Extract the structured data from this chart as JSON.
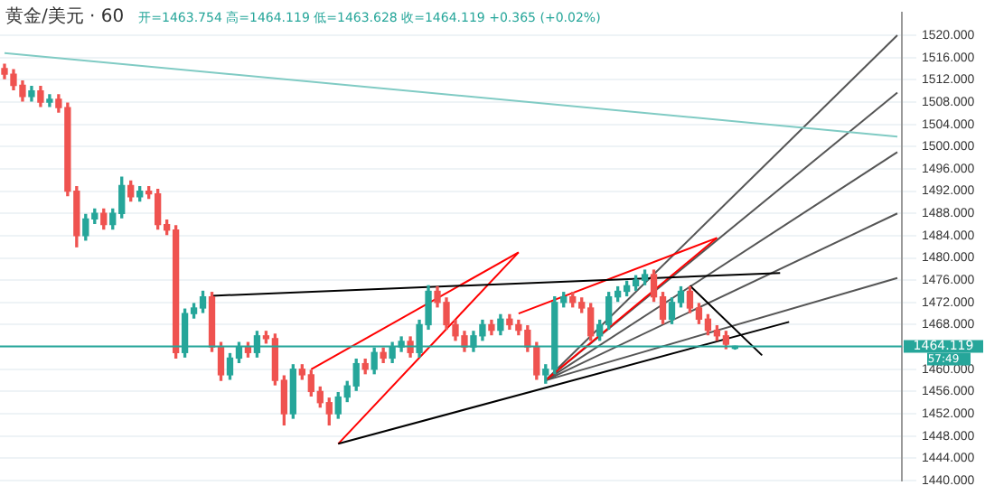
{
  "chart_data": {
    "type": "candlestick",
    "title": "黄金/美元 · 60",
    "subtitle": "开=1463.754 高=1464.119 低=1463.628 收=1464.119 +0.365 (+0.02%)",
    "categories": [
      null,
      null,
      null,
      null,
      null,
      null,
      null,
      null,
      null,
      null,
      null,
      null,
      null,
      null,
      null,
      null,
      null,
      null,
      null,
      null,
      null,
      null,
      null,
      null,
      null,
      null,
      null,
      null,
      null,
      null,
      null,
      null,
      null,
      null,
      null,
      null,
      null,
      null,
      null,
      null,
      null,
      null,
      null,
      null,
      null,
      null,
      null,
      null,
      null,
      null,
      null,
      null,
      null,
      null,
      null,
      null,
      null,
      null,
      null,
      null,
      null,
      null,
      null,
      null,
      null,
      null,
      null,
      null,
      null,
      null,
      null,
      null,
      null,
      null,
      null,
      null,
      null,
      null,
      null,
      null,
      null,
      null,
      null,
      null,
      null,
      null,
      null,
      null,
      null,
      null,
      null,
      null,
      null,
      null,
      null,
      null,
      null,
      null,
      null,
      null
    ],
    "ohlc": [
      [
        1514,
        1514.8,
        1512.2,
        1513
      ],
      [
        1513,
        1513.8,
        1510.2,
        1511
      ],
      [
        1511,
        1511.8,
        1508.2,
        1509
      ],
      [
        1509,
        1510.8,
        1508.2,
        1510
      ],
      [
        1510,
        1510.8,
        1507.2,
        1508
      ],
      [
        1508,
        1509.3,
        1507.2,
        1508.5
      ],
      [
        1508.5,
        1509.3,
        1506.2,
        1507
      ],
      [
        1507,
        1507.8,
        1491.2,
        1492
      ],
      [
        1492,
        1492.8,
        1482,
        1484
      ],
      [
        1484,
        1487.8,
        1483.2,
        1487
      ],
      [
        1487,
        1488.8,
        1486.2,
        1488
      ],
      [
        1488,
        1488.8,
        1485.2,
        1486
      ],
      [
        1486,
        1488.8,
        1485.2,
        1488
      ],
      [
        1488,
        1494.5,
        1487.2,
        1493
      ],
      [
        1493,
        1493.8,
        1490.2,
        1491
      ],
      [
        1491,
        1492.8,
        1490.2,
        1492
      ],
      [
        1492,
        1492.8,
        1490.7,
        1491.5
      ],
      [
        1491.5,
        1492.3,
        1485.2,
        1486
      ],
      [
        1486,
        1486.8,
        1484.2,
        1485
      ],
      [
        1485,
        1485.8,
        1462,
        1463
      ],
      [
        1463,
        1470.8,
        1462.2,
        1470
      ],
      [
        1470,
        1471.8,
        1469.2,
        1471
      ],
      [
        1471,
        1474,
        1470.2,
        1473
      ],
      [
        1473,
        1473.8,
        1463.2,
        1464
      ],
      [
        1464,
        1464.8,
        1458,
        1459
      ],
      [
        1459,
        1462.8,
        1458.2,
        1462
      ],
      [
        1462,
        1464.8,
        1461.2,
        1464
      ],
      [
        1464,
        1464.8,
        1462.2,
        1463
      ],
      [
        1463,
        1466.8,
        1462.2,
        1466
      ],
      [
        1466,
        1466.8,
        1464.7,
        1465.5
      ],
      [
        1465.5,
        1466.3,
        1457.2,
        1458
      ],
      [
        1458,
        1458.8,
        1450,
        1452
      ],
      [
        1452,
        1460.8,
        1451.2,
        1460
      ],
      [
        1460,
        1460.8,
        1458.2,
        1459
      ],
      [
        1459,
        1459.8,
        1455.2,
        1456
      ],
      [
        1456,
        1456.8,
        1453.2,
        1454
      ],
      [
        1454,
        1454.8,
        1450,
        1452
      ],
      [
        1452,
        1455.8,
        1451.2,
        1455
      ],
      [
        1455,
        1457.8,
        1454.2,
        1457
      ],
      [
        1457,
        1461.8,
        1456.2,
        1461
      ],
      [
        1461,
        1461.8,
        1459.2,
        1460
      ],
      [
        1460,
        1463.8,
        1459.2,
        1463
      ],
      [
        1463,
        1463.8,
        1461.2,
        1462
      ],
      [
        1462,
        1464.8,
        1461.2,
        1464
      ],
      [
        1464,
        1465.8,
        1463.2,
        1465
      ],
      [
        1465,
        1465.8,
        1462.2,
        1463
      ],
      [
        1463,
        1468.8,
        1462.2,
        1468
      ],
      [
        1468,
        1475,
        1467.2,
        1474
      ],
      [
        1474,
        1474.8,
        1471.2,
        1472
      ],
      [
        1472,
        1472.8,
        1467.2,
        1468
      ],
      [
        1468,
        1468.8,
        1465.2,
        1466
      ],
      [
        1466,
        1466.8,
        1463.2,
        1464
      ],
      [
        1464,
        1466.8,
        1463.2,
        1466
      ],
      [
        1466,
        1468.8,
        1465.2,
        1468
      ],
      [
        1468,
        1468.8,
        1466.2,
        1467
      ],
      [
        1467,
        1469.8,
        1466.2,
        1469
      ],
      [
        1469,
        1469.8,
        1467.2,
        1468
      ],
      [
        1468,
        1468.8,
        1466.2,
        1467
      ],
      [
        1467,
        1467.8,
        1463.2,
        1464
      ],
      [
        1464,
        1464.8,
        1458.2,
        1459
      ],
      [
        1459,
        1460.8,
        1457.5,
        1460
      ],
      [
        1460,
        1473,
        1459.2,
        1472
      ],
      [
        1472,
        1473.8,
        1471.2,
        1473
      ],
      [
        1473,
        1473.8,
        1471.2,
        1472
      ],
      [
        1472,
        1472.8,
        1470.2,
        1471
      ],
      [
        1471,
        1471.8,
        1465.2,
        1466
      ],
      [
        1466,
        1468.8,
        1465.2,
        1468
      ],
      [
        1468,
        1473.8,
        1467.2,
        1473
      ],
      [
        1473,
        1474.8,
        1472.2,
        1474
      ],
      [
        1474,
        1475.8,
        1473.2,
        1475
      ],
      [
        1475,
        1476.8,
        1474.2,
        1476
      ],
      [
        1476,
        1477.8,
        1475.2,
        1477
      ],
      [
        1477,
        1477.8,
        1472.2,
        1473
      ],
      [
        1473,
        1473.8,
        1468.2,
        1469
      ],
      [
        1469,
        1472.8,
        1468.2,
        1472
      ],
      [
        1472,
        1474.8,
        1471.2,
        1474
      ],
      [
        1474,
        1474.8,
        1470.2,
        1471
      ],
      [
        1471,
        1471.8,
        1468.2,
        1469
      ],
      [
        1469,
        1469.8,
        1466.2,
        1467
      ],
      [
        1467,
        1467.8,
        1465.2,
        1466
      ],
      [
        1466,
        1466.8,
        1463.7,
        1464.5
      ],
      [
        1463.754,
        1464.119,
        1463.628,
        1464.119
      ],
      null,
      null,
      null,
      null,
      null,
      null,
      null,
      null,
      null,
      null,
      null,
      null,
      null,
      null,
      null,
      null,
      null,
      null
    ],
    "colors": [
      "#ef5350",
      "#ef5350",
      "#ef5350",
      "#26a69a",
      "#ef5350",
      "#26a69a",
      "#ef5350",
      "#ef5350",
      "#ef5350",
      "#26a69a",
      "#26a69a",
      "#ef5350",
      "#26a69a",
      "#26a69a",
      "#ef5350",
      "#26a69a",
      "#ef5350",
      "#ef5350",
      "#ef5350",
      "#ef5350",
      "#26a69a",
      "#26a69a",
      "#26a69a",
      "#ef5350",
      "#ef5350",
      "#26a69a",
      "#26a69a",
      "#ef5350",
      "#26a69a",
      "#ef5350",
      "#ef5350",
      "#ef5350",
      "#26a69a",
      "#ef5350",
      "#ef5350",
      "#ef5350",
      "#ef5350",
      "#26a69a",
      "#26a69a",
      "#26a69a",
      "#ef5350",
      "#26a69a",
      "#ef5350",
      "#26a69a",
      "#26a69a",
      "#ef5350",
      "#26a69a",
      "#26a69a",
      "#ef5350",
      "#ef5350",
      "#ef5350",
      "#ef5350",
      "#26a69a",
      "#26a69a",
      "#ef5350",
      "#26a69a",
      "#ef5350",
      "#ef5350",
      "#ef5350",
      "#ef5350",
      "#26a69a",
      "#26a69a",
      "#26a69a",
      "#ef5350",
      "#ef5350",
      "#ef5350",
      "#26a69a",
      "#26a69a",
      "#26a69a",
      "#26a69a",
      "#26a69a",
      "#26a69a",
      "#ef5350",
      "#ef5350",
      "#26a69a",
      "#26a69a",
      "#ef5350",
      "#ef5350",
      "#ef5350",
      "#ef5350",
      "#ef5350",
      "#26a69a",
      null,
      null,
      null,
      null,
      null,
      null,
      null,
      null,
      null,
      null,
      null,
      null,
      null,
      null,
      null,
      null,
      null,
      null
    ],
    "series": [
      {
        "type": "line",
        "color": "#80cbc4",
        "values": [
          1516.8,
          null,
          null,
          null,
          null,
          null,
          null,
          null,
          null,
          null,
          null,
          null,
          null,
          null,
          null,
          null,
          null,
          null,
          null,
          null,
          null,
          null,
          null,
          null,
          null,
          null,
          null,
          null,
          null,
          null,
          null,
          null,
          null,
          null,
          null,
          null,
          null,
          null,
          null,
          null,
          null,
          null,
          null,
          null,
          null,
          null,
          null,
          null,
          null,
          null,
          null,
          null,
          null,
          null,
          null,
          null,
          null,
          null,
          null,
          null,
          null,
          null,
          null,
          null,
          null,
          null,
          null,
          null,
          null,
          null,
          null,
          null,
          null,
          null,
          null,
          null,
          null,
          null,
          null,
          null,
          null,
          null,
          null,
          null,
          null,
          null,
          null,
          null,
          null,
          null,
          null,
          null,
          null,
          null,
          null,
          null,
          null,
          null,
          null,
          1501.8
        ]
      },
      {
        "type": "line",
        "color": "#000000",
        "values": [
          null,
          null,
          null,
          null,
          null,
          null,
          null,
          null,
          null,
          null,
          null,
          null,
          null,
          null,
          null,
          null,
          null,
          null,
          null,
          null,
          null,
          null,
          null,
          1473.2,
          null,
          null,
          null,
          null,
          null,
          null,
          null,
          null,
          null,
          null,
          null,
          null,
          null,
          null,
          null,
          null,
          null,
          null,
          null,
          null,
          null,
          null,
          null,
          null,
          null,
          null,
          null,
          null,
          null,
          null,
          null,
          null,
          null,
          null,
          null,
          null,
          null,
          null,
          null,
          null,
          null,
          null,
          null,
          null,
          null,
          null,
          null,
          null,
          null,
          null,
          null,
          null,
          null,
          null,
          null,
          null,
          null,
          null,
          null,
          null,
          null,
          null,
          1477.3,
          null,
          null,
          null,
          null,
          null,
          null,
          null,
          null,
          null,
          null,
          null,
          null,
          null
        ]
      },
      {
        "type": "line",
        "color": "#000000",
        "values": [
          null,
          null,
          null,
          null,
          null,
          null,
          null,
          null,
          null,
          null,
          null,
          null,
          null,
          null,
          null,
          null,
          null,
          null,
          null,
          null,
          null,
          null,
          null,
          null,
          null,
          null,
          null,
          null,
          null,
          null,
          null,
          null,
          null,
          null,
          null,
          null,
          null,
          1446.6,
          null,
          null,
          null,
          null,
          null,
          null,
          null,
          null,
          null,
          null,
          null,
          null,
          null,
          null,
          null,
          null,
          null,
          null,
          null,
          null,
          null,
          null,
          null,
          null,
          null,
          null,
          null,
          null,
          null,
          null,
          null,
          null,
          null,
          null,
          null,
          null,
          null,
          null,
          null,
          null,
          null,
          null,
          null,
          null,
          null,
          null,
          null,
          null,
          null,
          1468.5,
          null,
          null,
          null,
          null,
          null,
          null,
          null,
          null,
          null,
          null,
          null,
          null
        ]
      },
      {
        "type": "line",
        "color": "#000000",
        "values": [
          null,
          null,
          null,
          null,
          null,
          null,
          null,
          null,
          null,
          null,
          null,
          null,
          null,
          null,
          null,
          null,
          null,
          null,
          null,
          null,
          null,
          null,
          null,
          null,
          null,
          null,
          null,
          null,
          null,
          null,
          null,
          null,
          null,
          null,
          null,
          null,
          null,
          null,
          null,
          null,
          null,
          null,
          null,
          null,
          null,
          null,
          null,
          null,
          null,
          null,
          null,
          null,
          null,
          null,
          null,
          null,
          null,
          null,
          null,
          null,
          null,
          null,
          null,
          null,
          null,
          null,
          null,
          null,
          null,
          null,
          null,
          null,
          null,
          null,
          null,
          null,
          1475,
          null,
          null,
          null,
          null,
          null,
          null,
          null,
          1462.5,
          null,
          null,
          null,
          null,
          null,
          null,
          null,
          null,
          null,
          null,
          null,
          null,
          null,
          null,
          null
        ]
      },
      {
        "type": "line",
        "color": "#ff0000",
        "values": [
          null,
          null,
          null,
          null,
          null,
          null,
          null,
          null,
          null,
          null,
          null,
          null,
          null,
          null,
          null,
          null,
          null,
          null,
          null,
          null,
          null,
          null,
          null,
          null,
          null,
          null,
          null,
          null,
          null,
          null,
          null,
          null,
          null,
          null,
          1460,
          null,
          null,
          null,
          null,
          null,
          null,
          null,
          null,
          null,
          null,
          null,
          null,
          null,
          null,
          null,
          null,
          null,
          null,
          null,
          null,
          null,
          null,
          1481,
          null,
          null,
          null,
          null,
          null,
          null,
          null,
          null,
          null,
          null,
          null,
          null,
          null,
          null,
          null,
          null,
          null,
          null,
          null,
          null,
          null,
          null,
          null,
          null,
          null,
          null,
          null,
          null,
          null,
          null,
          null,
          null,
          null,
          null,
          null,
          null,
          null,
          null,
          null,
          null,
          null,
          null
        ]
      },
      {
        "type": "line",
        "color": "#ff0000",
        "values": [
          null,
          null,
          null,
          null,
          null,
          null,
          null,
          null,
          null,
          null,
          null,
          null,
          null,
          null,
          null,
          null,
          null,
          null,
          null,
          null,
          null,
          null,
          null,
          null,
          null,
          null,
          null,
          null,
          null,
          null,
          null,
          null,
          null,
          null,
          null,
          null,
          null,
          1446.6,
          null,
          null,
          null,
          null,
          null,
          null,
          null,
          null,
          null,
          null,
          null,
          null,
          null,
          null,
          null,
          null,
          null,
          null,
          null,
          1481,
          null,
          null,
          null,
          null,
          null,
          null,
          null,
          null,
          null,
          null,
          null,
          null,
          null,
          null,
          null,
          null,
          null,
          null,
          null,
          null,
          null,
          null,
          null,
          null,
          null,
          null,
          null,
          null,
          null,
          null,
          null,
          null,
          null,
          null,
          null,
          null,
          null,
          null,
          null,
          null,
          null,
          null
        ]
      },
      {
        "type": "line",
        "color": "#ff0000",
        "values": [
          null,
          null,
          null,
          null,
          null,
          null,
          null,
          null,
          null,
          null,
          null,
          null,
          null,
          null,
          null,
          null,
          null,
          null,
          null,
          null,
          null,
          null,
          null,
          null,
          null,
          null,
          null,
          null,
          null,
          null,
          null,
          null,
          null,
          null,
          null,
          null,
          null,
          null,
          null,
          null,
          null,
          null,
          null,
          null,
          null,
          null,
          null,
          null,
          null,
          null,
          null,
          null,
          null,
          null,
          null,
          null,
          null,
          1470,
          null,
          null,
          null,
          null,
          null,
          null,
          null,
          null,
          null,
          null,
          null,
          null,
          null,
          null,
          null,
          null,
          null,
          null,
          null,
          null,
          null,
          1483.6,
          null,
          null,
          null,
          null,
          null,
          null,
          null,
          null,
          null,
          null,
          null,
          null,
          null,
          null,
          null,
          null,
          null,
          null,
          null,
          null
        ]
      },
      {
        "type": "line",
        "color": "#ff0000",
        "values": [
          null,
          null,
          null,
          null,
          null,
          null,
          null,
          null,
          null,
          null,
          null,
          null,
          null,
          null,
          null,
          null,
          null,
          null,
          null,
          null,
          null,
          null,
          null,
          null,
          null,
          null,
          null,
          null,
          null,
          null,
          null,
          null,
          null,
          null,
          null,
          null,
          null,
          null,
          null,
          null,
          null,
          null,
          null,
          null,
          null,
          null,
          null,
          null,
          null,
          null,
          null,
          null,
          null,
          null,
          null,
          null,
          null,
          null,
          null,
          null,
          1458,
          null,
          null,
          null,
          null,
          null,
          null,
          null,
          null,
          null,
          null,
          null,
          null,
          null,
          null,
          null,
          null,
          null,
          null,
          1483.6,
          null,
          null,
          null,
          null,
          null,
          null,
          null,
          null,
          null,
          null,
          null,
          null,
          null,
          null,
          null,
          null,
          null,
          null,
          null,
          null
        ]
      },
      {
        "type": "line",
        "color": "#555555",
        "values": [
          null,
          null,
          null,
          null,
          null,
          null,
          null,
          null,
          null,
          null,
          null,
          null,
          null,
          null,
          null,
          null,
          null,
          null,
          null,
          null,
          null,
          null,
          null,
          null,
          null,
          null,
          null,
          null,
          null,
          null,
          null,
          null,
          null,
          null,
          null,
          null,
          null,
          null,
          null,
          null,
          null,
          null,
          null,
          null,
          null,
          null,
          null,
          null,
          null,
          null,
          null,
          null,
          null,
          null,
          null,
          null,
          null,
          null,
          null,
          null,
          1458,
          null,
          null,
          null,
          null,
          null,
          null,
          null,
          null,
          null,
          null,
          null,
          null,
          null,
          null,
          null,
          null,
          null,
          null,
          null,
          null,
          null,
          null,
          null,
          null,
          null,
          null,
          null,
          null,
          null,
          null,
          null,
          null,
          null,
          null,
          null,
          null,
          null,
          null,
          1520
        ]
      },
      {
        "type": "line",
        "color": "#555555",
        "values": [
          null,
          null,
          null,
          null,
          null,
          null,
          null,
          null,
          null,
          null,
          null,
          null,
          null,
          null,
          null,
          null,
          null,
          null,
          null,
          null,
          null,
          null,
          null,
          null,
          null,
          null,
          null,
          null,
          null,
          null,
          null,
          null,
          null,
          null,
          null,
          null,
          null,
          null,
          null,
          null,
          null,
          null,
          null,
          null,
          null,
          null,
          null,
          null,
          null,
          null,
          null,
          null,
          null,
          null,
          null,
          null,
          null,
          null,
          null,
          null,
          1458,
          null,
          null,
          null,
          null,
          null,
          null,
          null,
          null,
          null,
          null,
          null,
          null,
          null,
          null,
          null,
          null,
          null,
          null,
          null,
          null,
          null,
          null,
          null,
          null,
          null,
          null,
          null,
          null,
          null,
          null,
          null,
          null,
          null,
          null,
          null,
          null,
          null,
          null,
          1509.7
        ]
      },
      {
        "type": "line",
        "color": "#555555",
        "values": [
          null,
          null,
          null,
          null,
          null,
          null,
          null,
          null,
          null,
          null,
          null,
          null,
          null,
          null,
          null,
          null,
          null,
          null,
          null,
          null,
          null,
          null,
          null,
          null,
          null,
          null,
          null,
          null,
          null,
          null,
          null,
          null,
          null,
          null,
          null,
          null,
          null,
          null,
          null,
          null,
          null,
          null,
          null,
          null,
          null,
          null,
          null,
          null,
          null,
          null,
          null,
          null,
          null,
          null,
          null,
          null,
          null,
          null,
          null,
          null,
          1458,
          null,
          null,
          null,
          null,
          null,
          null,
          null,
          null,
          null,
          null,
          null,
          null,
          null,
          null,
          null,
          null,
          null,
          null,
          null,
          null,
          null,
          null,
          null,
          null,
          null,
          null,
          null,
          null,
          null,
          null,
          null,
          null,
          null,
          null,
          null,
          null,
          null,
          null,
          1499
        ]
      },
      {
        "type": "line",
        "color": "#555555",
        "values": [
          null,
          null,
          null,
          null,
          null,
          null,
          null,
          null,
          null,
          null,
          null,
          null,
          null,
          null,
          null,
          null,
          null,
          null,
          null,
          null,
          null,
          null,
          null,
          null,
          null,
          null,
          null,
          null,
          null,
          null,
          null,
          null,
          null,
          null,
          null,
          null,
          null,
          null,
          null,
          null,
          null,
          null,
          null,
          null,
          null,
          null,
          null,
          null,
          null,
          null,
          null,
          null,
          null,
          null,
          null,
          null,
          null,
          null,
          null,
          null,
          1458,
          null,
          null,
          null,
          null,
          null,
          null,
          null,
          null,
          null,
          null,
          null,
          null,
          null,
          null,
          null,
          null,
          null,
          null,
          null,
          null,
          null,
          null,
          null,
          null,
          null,
          null,
          null,
          null,
          null,
          null,
          null,
          null,
          null,
          null,
          null,
          null,
          null,
          null,
          1488
        ]
      },
      {
        "type": "line",
        "color": "#555555",
        "values": [
          null,
          null,
          null,
          null,
          null,
          null,
          null,
          null,
          null,
          null,
          null,
          null,
          null,
          null,
          null,
          null,
          null,
          null,
          null,
          null,
          null,
          null,
          null,
          null,
          null,
          null,
          null,
          null,
          null,
          null,
          null,
          null,
          null,
          null,
          null,
          null,
          null,
          null,
          null,
          null,
          null,
          null,
          null,
          null,
          null,
          null,
          null,
          null,
          null,
          null,
          null,
          null,
          null,
          null,
          null,
          null,
          null,
          null,
          null,
          null,
          1458,
          null,
          null,
          null,
          null,
          null,
          null,
          null,
          null,
          null,
          null,
          null,
          null,
          null,
          null,
          null,
          null,
          null,
          null,
          null,
          null,
          null,
          null,
          null,
          null,
          null,
          null,
          null,
          null,
          null,
          null,
          null,
          null,
          null,
          null,
          null,
          null,
          null,
          null,
          1476.4
        ]
      }
    ],
    "ylim": [
      1440,
      1524
    ],
    "yticks": [
      {
        "value": 1440,
        "label": "1440.000"
      },
      {
        "value": 1444,
        "label": "1444.000"
      },
      {
        "value": 1448,
        "label": "1448.000"
      },
      {
        "value": 1452,
        "label": "1452.000"
      },
      {
        "value": 1456,
        "label": "1456.000"
      },
      {
        "value": 1460,
        "label": "1460.000"
      },
      {
        "value": 1464,
        "label": null
      },
      {
        "value": 1468,
        "label": "1468.000"
      },
      {
        "value": 1472,
        "label": "1472.000"
      },
      {
        "value": 1476,
        "label": "1476.000"
      },
      {
        "value": 1480,
        "label": "1480.000"
      },
      {
        "value": 1484,
        "label": "1484.000"
      },
      {
        "value": 1488,
        "label": "1488.000"
      },
      {
        "value": 1492,
        "label": "1492.000"
      },
      {
        "value": 1496,
        "label": "1496.000"
      },
      {
        "value": 1500,
        "label": "1500.000"
      },
      {
        "value": 1504,
        "label": "1504.000"
      },
      {
        "value": 1508,
        "label": "1508.000"
      },
      {
        "value": 1512,
        "label": "1512.000"
      },
      {
        "value": 1516,
        "label": "1516.000"
      },
      {
        "value": 1520,
        "label": "1520.000"
      }
    ],
    "ref_lines": [
      {
        "axis": "y",
        "value": 1464.119,
        "label": "1464.119",
        "color": "#26a69a"
      }
    ],
    "annotations": [
      "57:49"
    ],
    "grid": "y",
    "tick_labels": "y"
  }
}
